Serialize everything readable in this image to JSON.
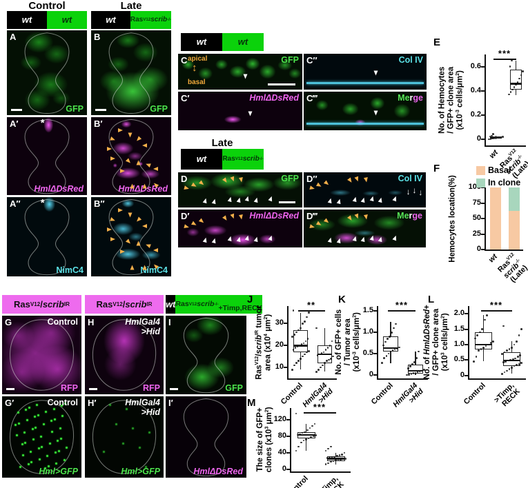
{
  "icons": {
    "asterisk": "*",
    "down_arrow": "↓",
    "updown_arrow": "↕"
  },
  "top_left": {
    "col1_title": "Control",
    "col2_title": "Late",
    "bar1": {
      "left": "wt",
      "right": "wt"
    },
    "bar2": {
      "left": "wt",
      "right_html": "Ras<sup>V12</sup><br><i>scrib</i><sup>-/-</sup>"
    },
    "panels": {
      "A": {
        "letter": "A",
        "marker": "GFP"
      },
      "B": {
        "letter": "B",
        "marker": "GFP"
      },
      "A1": {
        "letter": "A′",
        "marker": "HmlΔDsRed"
      },
      "B1": {
        "letter": "B′",
        "marker": "HmlΔDsRed"
      },
      "A2": {
        "letter": "A″",
        "marker": "NimC4"
      },
      "B2": {
        "letter": "B″",
        "marker": "NimC4"
      }
    }
  },
  "middle": {
    "bar_top": {
      "left": "wt",
      "right": "wt"
    },
    "late_title": "Late",
    "bar_late": {
      "left": "wt",
      "right_html": "Ras<sup>V12</sup><br><i>scrib</i><sup>-/-</sup>"
    },
    "apical": "apical",
    "basal": "basal",
    "merge_html": "<span style='color:#57e457'>Me</span><span style='color:#fff'>r</span><span style='color:#ee66ee'>ge</span>",
    "panels": {
      "C": {
        "letter": "C",
        "marker": "GFP"
      },
      "C1": {
        "letter": "C′",
        "marker": "HmlΔDsRed"
      },
      "C2": {
        "letter": "C″",
        "marker": "Col IV"
      },
      "C3": {
        "letter": "C‴"
      },
      "D": {
        "letter": "D",
        "marker": "GFP"
      },
      "D1": {
        "letter": "D′",
        "marker": "HmlΔDsRed"
      },
      "D2": {
        "letter": "D″",
        "marker": "Col IV"
      },
      "D3": {
        "letter": "D‴"
      }
    }
  },
  "bottom": {
    "headers": {
      "g_html": "Ras<sup>V12</sup>/<i>scrib</i><sup>IR</sup>",
      "h_html": "Ras<sup>V12</sup>/<i>scrib</i><sup>IR</sup>",
      "i_left": "wt",
      "i_right_html": "Ras<sup>V12</sup><i>scrib</i><sup>-/-</sup><br>+Timp,RECK"
    },
    "panels": {
      "G": {
        "letter": "G",
        "corner": "Control",
        "marker": "RFP"
      },
      "H": {
        "letter": "H",
        "corner_html": "<i>HmlGal4</i><br><i>&gt;Hid</i>",
        "marker": "RFP"
      },
      "I": {
        "letter": "I",
        "marker": "GFP"
      },
      "G1": {
        "letter": "G′",
        "corner": "Control",
        "marker_html": "<i>Hml&gt;GFP</i>"
      },
      "H1": {
        "letter": "H′",
        "corner_html": "<i>HmlGal4</i><br><i>&gt;Hid</i>",
        "marker_html": "<i>Hml&gt;GFP</i>"
      },
      "I1": {
        "letter": "I′",
        "marker_html": "<i>HmlΔDsRed</i>"
      }
    }
  },
  "chart_data": [
    {
      "id": "E",
      "type": "box",
      "label": "E",
      "sig": "***",
      "ylabel_html": "No. of Hemocytes<br>/ GFP+ clone area<br>(x10<sup>-3</sup> cells/μm<sup>2</sup>)",
      "ylim": [
        -0.05,
        0.7
      ],
      "yticks": [
        {
          "v": 0,
          "label": "0"
        },
        {
          "v": 0.2,
          "label": "0.2"
        },
        {
          "v": 0.4,
          "label": "0.4"
        },
        {
          "v": 0.6,
          "label": "0.6"
        }
      ],
      "groups": [
        {
          "label_html": "<i>wt</i>",
          "box": {
            "lo": 0,
            "q1": 0.004,
            "med": 0.012,
            "q3": 0.022,
            "hi": 0.032
          },
          "points": [
            0.002,
            0.005,
            0.008,
            0.01,
            0.012,
            0.014,
            0.016,
            0.018,
            0.02,
            0.025,
            0.03,
            0.045
          ]
        },
        {
          "label_html": "Ras<sup>V12</sup><br><i>scrib</i><sup>-/-</sup><br>(Late)",
          "box": {
            "lo": 0.365,
            "q1": 0.41,
            "med": 0.46,
            "q3": 0.575,
            "hi": 0.65
          },
          "points": [
            0.37,
            0.39,
            0.41,
            0.43,
            0.45,
            0.47,
            0.5,
            0.53,
            0.56,
            0.6,
            0.65
          ]
        }
      ]
    },
    {
      "id": "F",
      "type": "stacked_bar",
      "label": "F",
      "legend": [
        {
          "name": "Basal",
          "label": "Basal",
          "color": "#f7c9a3"
        },
        {
          "name": "In clone",
          "label": "In clone",
          "color": "#a8d6bd"
        }
      ],
      "ylabel_html": "Hemocytes location(%)",
      "ylim": [
        0,
        100
      ],
      "yticks": [
        {
          "v": 0,
          "label": "0"
        },
        {
          "v": 25,
          "label": "25"
        },
        {
          "v": 50,
          "label": "50"
        },
        {
          "v": 75,
          "label": "75"
        },
        {
          "v": 100,
          "label": "100"
        }
      ],
      "bars": [
        {
          "label_html": "<i>wt</i>",
          "segments": [
            {
              "name": "Basal",
              "value": 100
            },
            {
              "name": "In clone",
              "value": 0
            }
          ]
        },
        {
          "label_html": "Ras<sup>V12</sup><br><i>scrib</i><sup>-/-</sup><br>(Late)",
          "segments": [
            {
              "name": "Basal",
              "value": 62
            },
            {
              "name": "In clone",
              "value": 38
            }
          ]
        }
      ]
    },
    {
      "id": "J",
      "type": "box",
      "label": "J",
      "sig": "**",
      "ylabel_html": "Ras<sup>V12</sup>/<i>scrib</i><sup>IR</sup> tumor<br>area (x10<sup>4</sup> μm<sup>2</sup>)",
      "ylim": [
        5,
        38
      ],
      "yticks": [
        {
          "v": 10,
          "label": "10"
        },
        {
          "v": 20,
          "label": "20"
        },
        {
          "v": 30,
          "label": "30"
        }
      ],
      "groups": [
        {
          "label_html": "Control",
          "box": {
            "lo": 9,
            "q1": 17,
            "med": 20,
            "q3": 27,
            "hi": 35
          },
          "points": [
            9,
            11,
            12,
            13,
            14,
            15,
            16,
            17,
            17.5,
            18,
            19,
            19.5,
            20,
            20.5,
            21,
            22,
            23,
            24,
            25,
            26,
            27,
            28,
            30,
            31,
            33,
            35,
            36
          ]
        },
        {
          "label_html": "<i>HmlGal4</i><br><i>&gt;Hid</i>",
          "box": {
            "lo": 8,
            "q1": 12,
            "med": 16,
            "q3": 20,
            "hi": 28
          },
          "points": [
            8,
            9,
            10,
            11,
            12,
            13,
            13.5,
            14,
            15,
            15.5,
            16,
            16.5,
            17,
            18,
            19,
            20,
            22,
            28
          ]
        }
      ]
    },
    {
      "id": "K",
      "type": "box",
      "label": "K",
      "sig": "***",
      "ylabel_html": "No. of GFP+ cells<br>/ Tumor area<br>(x10<sup>-3</sup> cells/μm<sup>2</sup>)",
      "ylim": [
        -0.08,
        1.62
      ],
      "yticks": [
        {
          "v": 0,
          "label": "0"
        },
        {
          "v": 0.5,
          "label": "0.5"
        },
        {
          "v": 1.0,
          "label": "1.0"
        },
        {
          "v": 1.5,
          "label": "1.5"
        }
      ],
      "groups": [
        {
          "label_html": "Control",
          "box": {
            "lo": 0.28,
            "q1": 0.55,
            "med": 0.63,
            "q3": 0.9,
            "hi": 1.25
          },
          "points": [
            0.28,
            0.4,
            0.45,
            0.5,
            0.55,
            0.58,
            0.6,
            0.62,
            0.65,
            0.7,
            0.78,
            0.85,
            0.9,
            1.0,
            1.1,
            1.2
          ]
        },
        {
          "label_html": "<i>HmlGal4</i><br><i>&gt;Hid</i>",
          "box": {
            "lo": 0,
            "q1": 0.04,
            "med": 0.1,
            "q3": 0.25,
            "hi": 0.55
          },
          "points": [
            0,
            0.01,
            0.02,
            0.04,
            0.05,
            0.07,
            0.09,
            0.1,
            0.12,
            0.15,
            0.2,
            0.25,
            0.3,
            0.4,
            0.55
          ]
        }
      ]
    },
    {
      "id": "L",
      "type": "box",
      "label": "L",
      "sig": "***",
      "ylabel_html": "No. of <i>HmlΔDsRed</i>+<br>/ GFP+ clone area<br>(x10<sup>3</sup> cells/μm<sup>2</sup>)",
      "ylim": [
        -0.1,
        2.25
      ],
      "yticks": [
        {
          "v": 0,
          "label": "0"
        },
        {
          "v": 0.5,
          "label": "0.5"
        },
        {
          "v": 1.0,
          "label": "1.0"
        },
        {
          "v": 1.5,
          "label": "1.5"
        },
        {
          "v": 2.0,
          "label": "2.0"
        }
      ],
      "groups": [
        {
          "label_html": "Control",
          "box": {
            "lo": 0.45,
            "q1": 0.85,
            "med": 1.0,
            "q3": 1.4,
            "hi": 1.95
          },
          "points": [
            0.45,
            0.6,
            0.8,
            0.85,
            0.9,
            0.95,
            1.0,
            1.05,
            1.1,
            1.2,
            1.3,
            1.4,
            1.5,
            1.8,
            1.95
          ]
        },
        {
          "label_html": "&gt;Timp,<br>RECK",
          "box": {
            "lo": 0.05,
            "q1": 0.3,
            "med": 0.48,
            "q3": 0.75,
            "hi": 1.1
          },
          "points": [
            0.05,
            0.1,
            0.15,
            0.2,
            0.25,
            0.3,
            0.33,
            0.36,
            0.4,
            0.42,
            0.45,
            0.48,
            0.5,
            0.52,
            0.55,
            0.6,
            0.65,
            0.7,
            0.75,
            0.8,
            0.85,
            0.9,
            1.0,
            1.1,
            1.3,
            1.5,
            1.6
          ]
        }
      ]
    },
    {
      "id": "M",
      "type": "box",
      "label": "M",
      "sig": "***",
      "ylabel_html": "The size of GFP+<br>clones (x10<sup>3</sup> μm<sup>2</sup>)",
      "ylim": [
        -5,
        148
      ],
      "yticks": [
        {
          "v": 0,
          "label": "0"
        },
        {
          "v": 40,
          "label": "40"
        },
        {
          "v": 80,
          "label": "80"
        },
        {
          "v": 120,
          "label": "120"
        }
      ],
      "groups": [
        {
          "label_html": "Control",
          "box": {
            "lo": 45,
            "q1": 74,
            "med": 83,
            "q3": 90,
            "hi": 110
          },
          "points": [
            45,
            55,
            65,
            70,
            72,
            75,
            78,
            80,
            82,
            83,
            85,
            88,
            90,
            95,
            100,
            105,
            110,
            135
          ]
        },
        {
          "label_html": "&gt;Timp,<br>RECK",
          "box": {
            "lo": 12,
            "q1": 20,
            "med": 26,
            "q3": 32,
            "hi": 40
          },
          "points": [
            12,
            15,
            18,
            20,
            22,
            23,
            24,
            25,
            26,
            27,
            28,
            29,
            30,
            32,
            34,
            36,
            40,
            45,
            50,
            55
          ]
        }
      ]
    }
  ]
}
